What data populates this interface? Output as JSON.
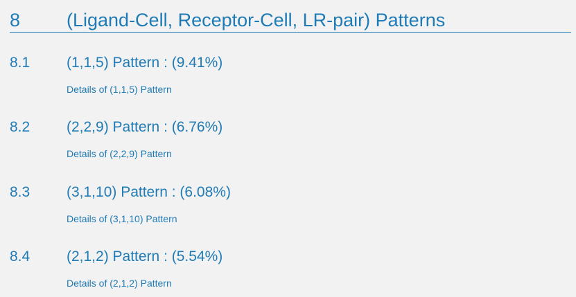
{
  "heading": {
    "number": "8",
    "title": "(Ligand-Cell, Receptor-Cell, LR-pair) Patterns"
  },
  "sections": [
    {
      "number": "8.1",
      "title": "(1,1,5) Pattern : (9.41%)",
      "link": "Details of (1,1,5) Pattern"
    },
    {
      "number": "8.2",
      "title": "(2,2,9) Pattern : (6.76%)",
      "link": "Details of (2,2,9) Pattern"
    },
    {
      "number": "8.3",
      "title": "(3,1,10) Pattern : (6.08%)",
      "link": "Details of (3,1,10) Pattern"
    },
    {
      "number": "8.4",
      "title": "(2,1,2) Pattern : (5.54%)",
      "link": "Details of (2,1,2) Pattern"
    }
  ],
  "colors": {
    "background": "#f2f2f2",
    "accent": "#1f7bb5"
  }
}
